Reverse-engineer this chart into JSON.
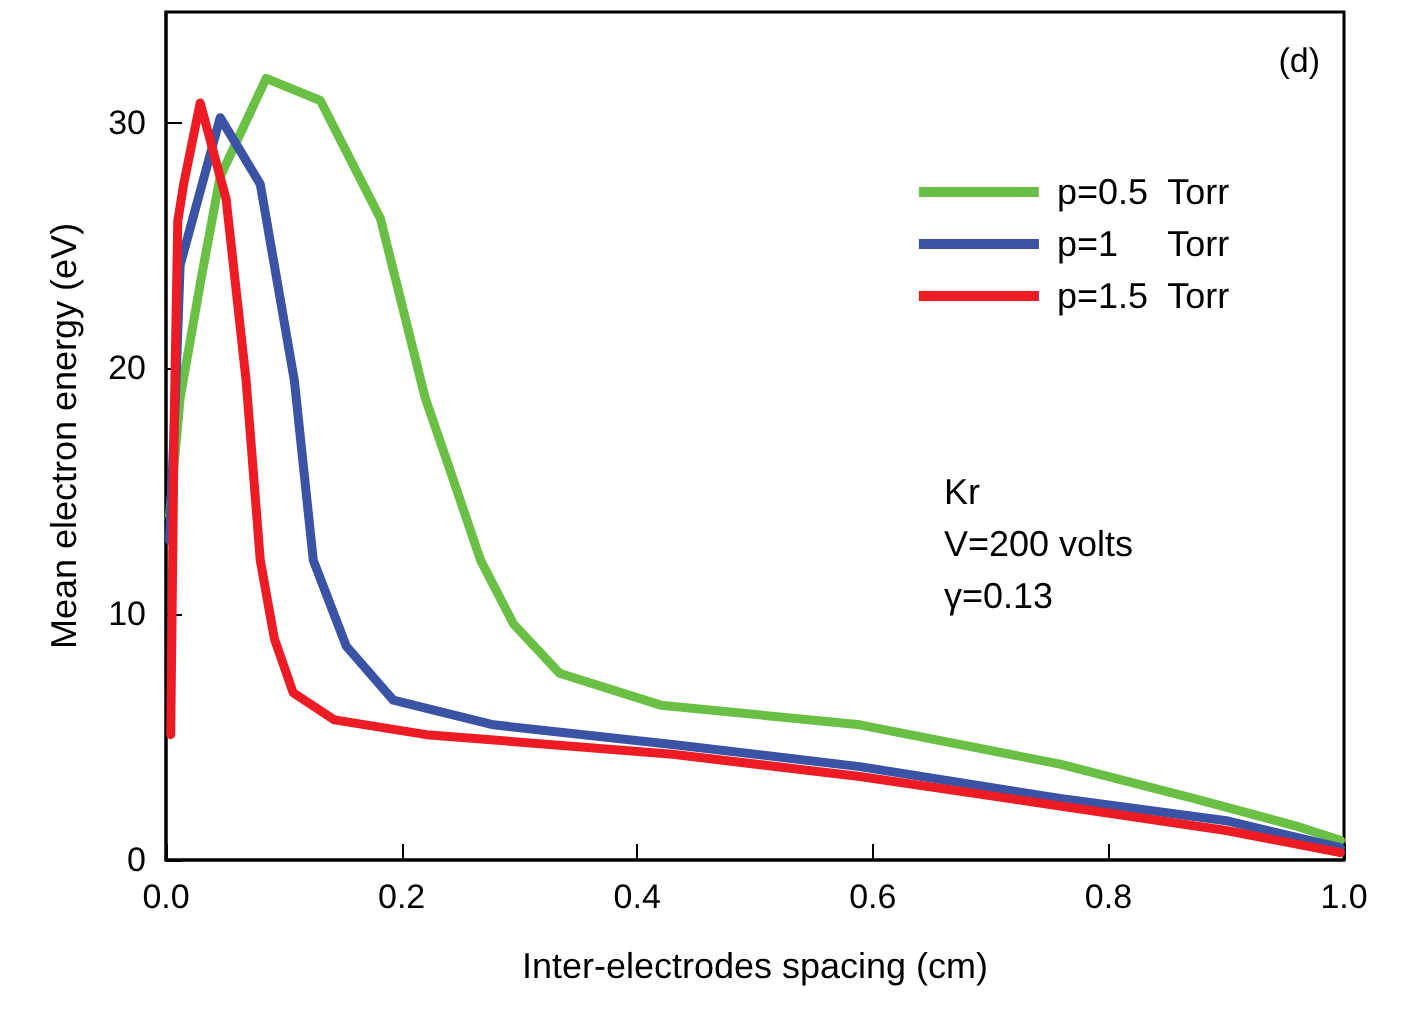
{
  "chart_data": {
    "type": "line",
    "xlabel": "Inter-electrodes spacing (cm)",
    "ylabel": "Mean electron energy (eV)",
    "annotations": [
      "(d)",
      "Kr",
      "V=200 volts",
      "γ=0.13"
    ],
    "xlim": [
      0,
      1
    ],
    "xticks": [
      {
        "value": 0,
        "label": "0.0"
      },
      {
        "value": 0.2,
        "label": "0.2"
      },
      {
        "value": 0.4,
        "label": "0.4"
      },
      {
        "value": 0.6,
        "label": "0.6"
      },
      {
        "value": 0.8,
        "label": "0.8"
      },
      {
        "value": 1,
        "label": "1.0"
      }
    ],
    "ylim": [
      0,
      34.5
    ],
    "yticks": [
      0,
      10,
      20,
      30
    ],
    "grid": false,
    "legend": "top right",
    "marker": "none",
    "line_style": "solid",
    "series": [
      {
        "name": "p=0.5  Torr",
        "color": "#6abf45",
        "x": [
          0.003,
          0.012,
          0.03,
          0.046,
          0.085,
          0.131,
          0.182,
          0.22,
          0.238,
          0.267,
          0.295,
          0.334,
          0.42,
          0.589,
          0.759,
          0.873,
          0.958,
          0.997
        ],
        "values": [
          14,
          18.8,
          23.7,
          27.8,
          31.8,
          30.9,
          26.1,
          18.8,
          16.3,
          12.2,
          9.6,
          7.6,
          6.3,
          5.5,
          3.9,
          2.5,
          1.4,
          0.8
        ]
      },
      {
        "name": "p=1     Torr",
        "color": "#3a53a4",
        "x": [
          0.003,
          0.008,
          0.012,
          0.046,
          0.08,
          0.109,
          0.125,
          0.153,
          0.193,
          0.278,
          0.43,
          0.589,
          0.759,
          0.9,
          0.997
        ],
        "values": [
          13,
          18.8,
          24.2,
          30.2,
          27.5,
          19.5,
          12.2,
          8.7,
          6.5,
          5.5,
          4.7,
          3.8,
          2.5,
          1.6,
          0.5
        ]
      },
      {
        "name": "p=1.5  Torr",
        "color": "#ed1c24",
        "x": [
          0.004,
          0.007,
          0.01,
          0.015,
          0.029,
          0.051,
          0.068,
          0.08,
          0.092,
          0.108,
          0.143,
          0.221,
          0.43,
          0.589,
          0.759,
          0.9,
          0.997
        ],
        "values": [
          5.1,
          18,
          26,
          27.5,
          30.8,
          26.9,
          19.5,
          12.2,
          9,
          6.8,
          5.7,
          5.1,
          4.3,
          3.4,
          2.2,
          1.2,
          0.3
        ]
      }
    ]
  }
}
